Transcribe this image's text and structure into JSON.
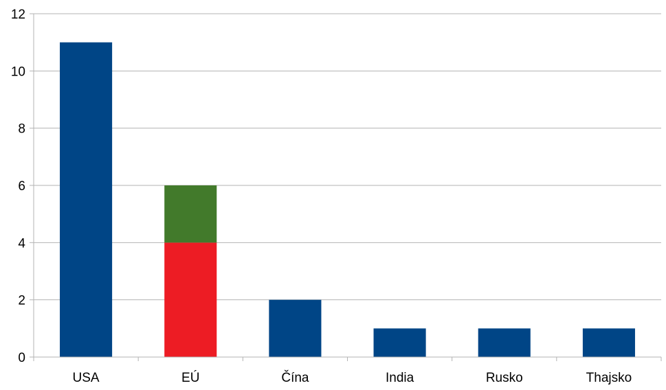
{
  "chart_data": {
    "type": "bar",
    "stacked": true,
    "categories": [
      "USA",
      "EÚ",
      "Čína",
      "India",
      "Rusko",
      "Thajsko"
    ],
    "series": [
      {
        "color": "#004586",
        "values": [
          11,
          0,
          2,
          1,
          1,
          1
        ]
      },
      {
        "color": "#ed1c24",
        "values": [
          0,
          4,
          0,
          0,
          0,
          0
        ]
      },
      {
        "color": "#427a2b",
        "values": [
          0,
          2,
          0,
          0,
          0,
          0
        ]
      }
    ],
    "ylim": [
      0,
      12
    ],
    "yticks": [
      0,
      2,
      4,
      6,
      8,
      10,
      12
    ],
    "grid": true,
    "legend": "none",
    "title": "",
    "xlabel": "",
    "ylabel": ""
  }
}
